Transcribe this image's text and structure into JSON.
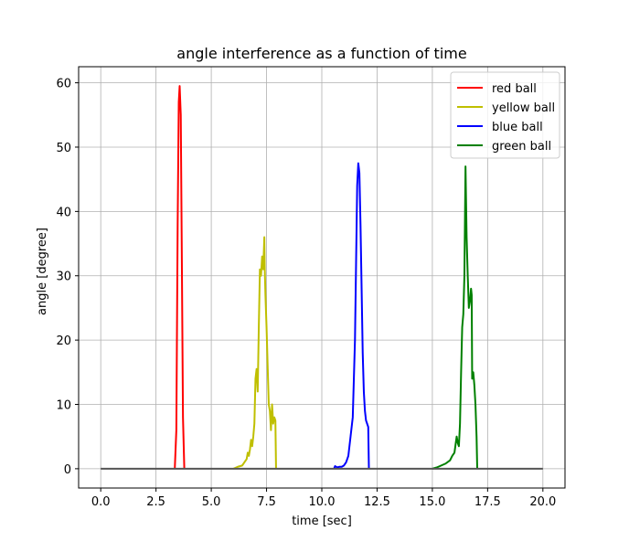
{
  "chart_data": {
    "type": "line",
    "title": "angle interference as a function of time",
    "xlabel": "time [sec]",
    "ylabel": "angle [degree]",
    "xlim": [
      -1.0,
      21.0
    ],
    "ylim": [
      -3.0,
      62.5
    ],
    "xticks": [
      0.0,
      2.5,
      5.0,
      7.5,
      10.0,
      12.5,
      15.0,
      17.5,
      20.0
    ],
    "xtick_labels": [
      "0.0",
      "2.5",
      "5.0",
      "7.5",
      "10.0",
      "12.5",
      "15.0",
      "17.5",
      "20.0"
    ],
    "yticks": [
      0,
      10,
      20,
      30,
      40,
      50,
      60
    ],
    "ytick_labels": [
      "0",
      "10",
      "20",
      "30",
      "40",
      "50",
      "60"
    ],
    "grid": true,
    "legend_position": "top-right",
    "baseline": {
      "color": "#555555",
      "x": [
        0.0,
        20.0
      ],
      "y": [
        0,
        0
      ]
    },
    "series": [
      {
        "name": "red ball",
        "color": "#ff0000",
        "x": [
          3.35,
          3.42,
          3.48,
          3.53,
          3.57,
          3.62,
          3.67,
          3.72,
          3.78
        ],
        "y": [
          0,
          6,
          38,
          57,
          59.5,
          55,
          32,
          8,
          0
        ]
      },
      {
        "name": "yellow ball",
        "color": "#bfbf00",
        "x": [
          6.0,
          6.2,
          6.4,
          6.5,
          6.6,
          6.65,
          6.7,
          6.75,
          6.8,
          6.85,
          6.9,
          6.95,
          7.0,
          7.05,
          7.1,
          7.15,
          7.2,
          7.25,
          7.3,
          7.35,
          7.4,
          7.42,
          7.45,
          7.5,
          7.55,
          7.6,
          7.65,
          7.7,
          7.75,
          7.8,
          7.85,
          7.9,
          7.93
        ],
        "y": [
          0,
          0.3,
          0.5,
          1.0,
          1.5,
          2.5,
          2.0,
          3.0,
          4.5,
          3.5,
          5.0,
          7.0,
          14.0,
          15.5,
          12.0,
          22.0,
          31.0,
          30.0,
          33.0,
          31.0,
          36.0,
          31.0,
          27.0,
          22.0,
          16.0,
          10.0,
          9.0,
          6.0,
          10.0,
          7.0,
          8.0,
          7.5,
          0
        ]
      },
      {
        "name": "blue ball",
        "color": "#0000ff",
        "x": [
          10.55,
          10.6,
          10.7,
          10.8,
          10.9,
          11.0,
          11.1,
          11.2,
          11.3,
          11.4,
          11.5,
          11.55,
          11.6,
          11.65,
          11.7,
          11.75,
          11.8,
          11.85,
          11.9,
          11.95,
          12.0,
          12.05,
          12.1,
          12.13
        ],
        "y": [
          0,
          0.4,
          0.2,
          0.3,
          0.3,
          0.5,
          1.0,
          2.0,
          5.0,
          8.0,
          20.0,
          32.0,
          44.0,
          47.5,
          46.0,
          38.0,
          28.0,
          18.0,
          12.0,
          9.0,
          7.5,
          7.0,
          6.5,
          0
        ]
      },
      {
        "name": "green ball",
        "color": "#008000",
        "x": [
          15.0,
          15.2,
          15.4,
          15.6,
          15.8,
          15.9,
          16.0,
          16.1,
          16.15,
          16.2,
          16.25,
          16.3,
          16.35,
          16.4,
          16.45,
          16.5,
          16.55,
          16.6,
          16.65,
          16.7,
          16.75,
          16.78,
          16.8,
          16.85,
          16.9,
          16.95,
          17.0,
          17.03
        ],
        "y": [
          0,
          0.2,
          0.5,
          0.8,
          1.3,
          2.0,
          2.5,
          5.0,
          4.0,
          3.5,
          7.0,
          15.0,
          22.0,
          24.0,
          30.0,
          47.0,
          36.0,
          30.0,
          25.0,
          26.0,
          28.0,
          27.0,
          14.0,
          15.0,
          13.0,
          10.0,
          5.0,
          0
        ]
      }
    ]
  }
}
